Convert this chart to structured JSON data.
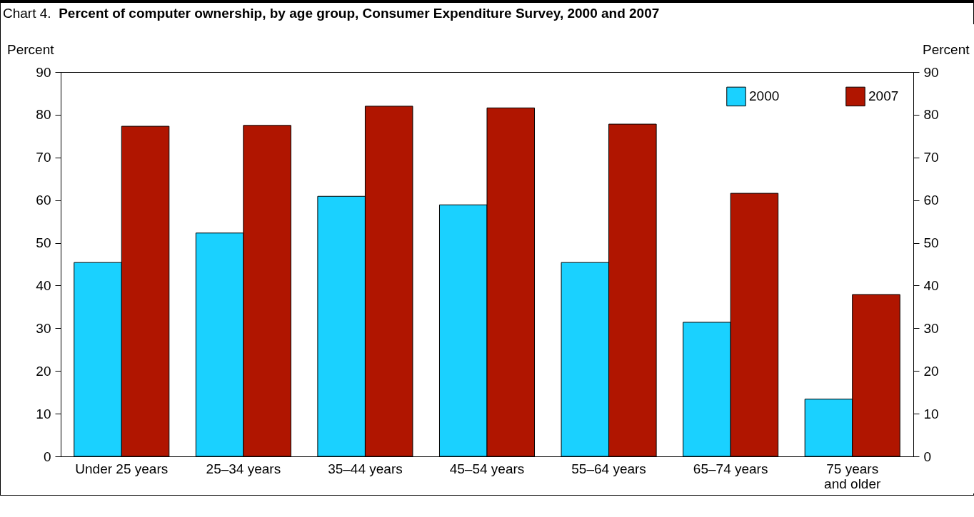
{
  "chart_data": {
    "type": "bar",
    "title": "Chart 4. Percent of computer ownership, by age group, Consumer Expenditure Survey, 2000 and 2007",
    "categories": [
      "Under 25 years",
      "25–34 years",
      "35–44 years",
      "45–54 years",
      "55–64 years",
      "65–74 years",
      "75 years\nand older"
    ],
    "series": [
      {
        "name": "2000",
        "color": "#1ad1ff",
        "values": [
          45.4,
          52.3,
          60.9,
          58.9,
          45.4,
          31.4,
          13.4
        ]
      },
      {
        "name": "2007",
        "color": "#b01500",
        "values": [
          77.3,
          77.5,
          82.0,
          81.6,
          77.8,
          61.6,
          37.9
        ]
      }
    ],
    "ylabel": "Percent",
    "y2label": "Percent",
    "ylim": [
      0,
      90
    ],
    "yticks": [
      0,
      10,
      20,
      30,
      40,
      50,
      60,
      70,
      80,
      90
    ],
    "y2lim": [
      0,
      90
    ],
    "y2ticks": [
      0,
      10,
      20,
      30,
      40,
      50,
      60,
      70,
      80,
      90
    ],
    "grid": false,
    "legend": "top right"
  }
}
